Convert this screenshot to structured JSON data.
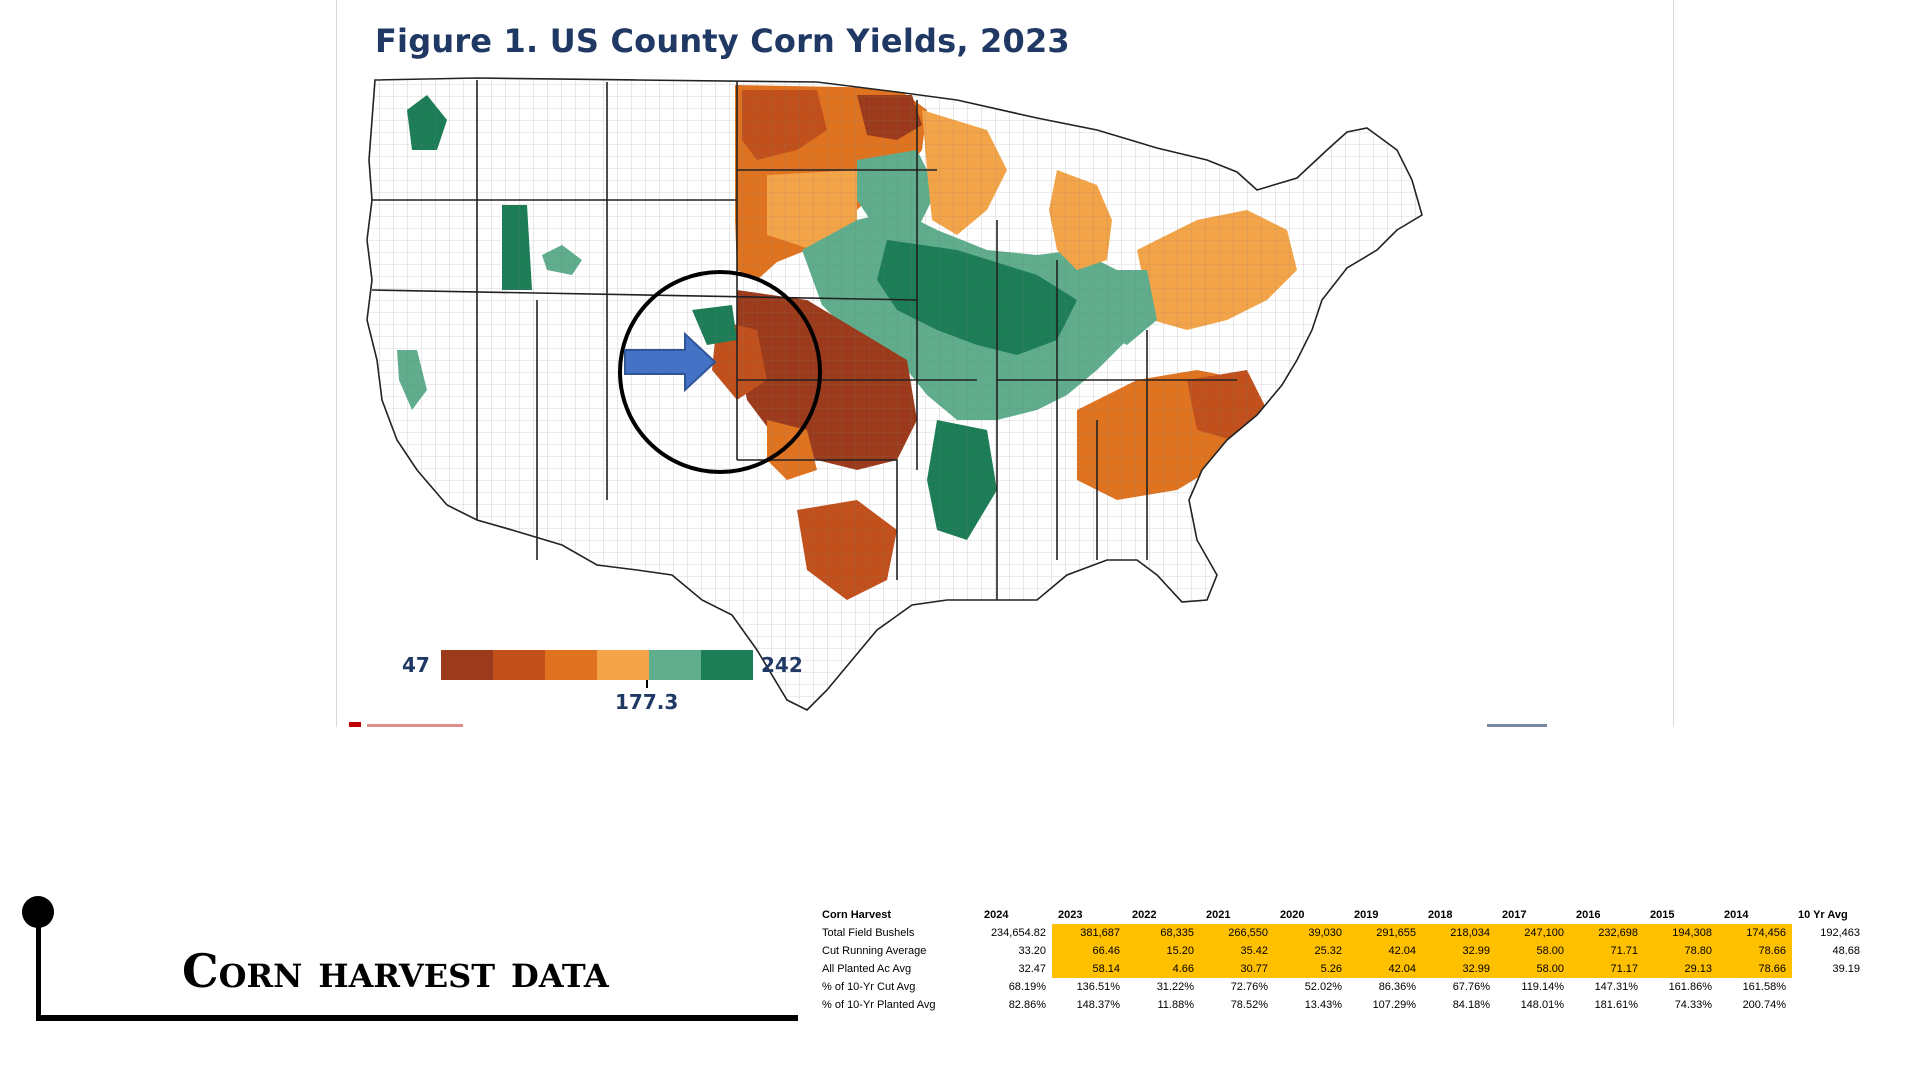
{
  "figure": {
    "title": "Figure 1. US County Corn Yields, 2023",
    "legend": {
      "min_label": "47",
      "max_label": "242",
      "mid_label": "177.3",
      "colors": [
        "#9c3b1c",
        "#c2501c",
        "#e07320",
        "#f4a448",
        "#5fad8c",
        "#1c7d57"
      ]
    },
    "annotations": [
      "circle-highlight",
      "blue-arrow"
    ],
    "colors": {
      "title": "#1f3864",
      "state_border": "#222222",
      "county_border": "#555555",
      "arrow": "#4472c4"
    }
  },
  "heading": {
    "text": "Corn harvest data"
  },
  "table": {
    "columns": [
      "Corn Harvest",
      "2024",
      "2023",
      "2022",
      "2021",
      "2020",
      "2019",
      "2018",
      "2017",
      "2016",
      "2015",
      "2014",
      "10 Yr Avg"
    ],
    "rows": [
      {
        "label": "Total Field Bushels",
        "values": [
          "234,654.82",
          "381,687",
          "68,335",
          "266,550",
          "39,030",
          "291,655",
          "218,034",
          "247,100",
          "232,698",
          "194,308",
          "174,456",
          "192,463"
        ]
      },
      {
        "label": "Cut Running Average",
        "values": [
          "33.20",
          "66.46",
          "15.20",
          "35.42",
          "25.32",
          "42.04",
          "32.99",
          "58.00",
          "71.71",
          "78.80",
          "78.66",
          "48.68"
        ]
      },
      {
        "label": "All Planted Ac Avg",
        "values": [
          "32.47",
          "58.14",
          "4.66",
          "30.77",
          "5.26",
          "42.04",
          "32.99",
          "58.00",
          "71.17",
          "29.13",
          "78.66",
          "39.19"
        ]
      },
      {
        "label": "% of 10-Yr Cut Avg",
        "values": [
          "68.19%",
          "136.51%",
          "31.22%",
          "72.76%",
          "52.02%",
          "86.36%",
          "67.76%",
          "119.14%",
          "147.31%",
          "161.86%",
          "161.58%",
          ""
        ]
      },
      {
        "label": "% of 10-Yr Planted Avg",
        "values": [
          "82.86%",
          "148.37%",
          "11.88%",
          "78.52%",
          "13.43%",
          "107.29%",
          "84.18%",
          "148.01%",
          "181.61%",
          "74.33%",
          "200.74%",
          ""
        ]
      }
    ],
    "highlight_color": "#ffc000"
  }
}
